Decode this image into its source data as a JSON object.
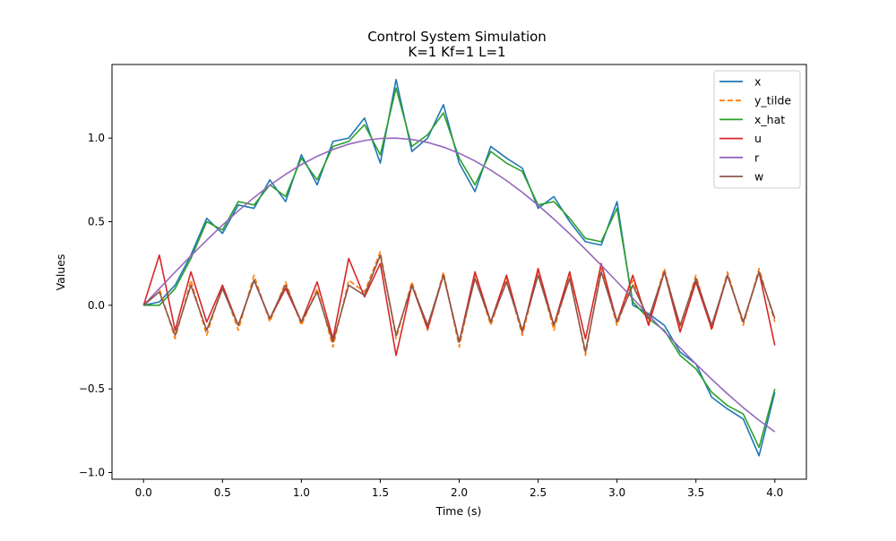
{
  "chart_data": {
    "type": "line",
    "title": "Control System Simulation",
    "subtitle": "K=1 Kf=1 L=1",
    "xlabel": "Time (s)",
    "ylabel": "Values",
    "xlim": [
      -0.2,
      4.2
    ],
    "ylim": [
      -1.04,
      1.44
    ],
    "xticks": [
      0.0,
      0.5,
      1.0,
      1.5,
      2.0,
      2.5,
      3.0,
      3.5,
      4.0
    ],
    "xtick_labels": [
      "0.0",
      "0.5",
      "1.0",
      "1.5",
      "2.0",
      "2.5",
      "3.0",
      "3.5",
      "4.0"
    ],
    "yticks": [
      -1.0,
      -0.5,
      0.0,
      0.5,
      1.0
    ],
    "ytick_labels": [
      "−1.0",
      "−0.5",
      "0.0",
      "0.5",
      "1.0"
    ],
    "grid": false,
    "legend_position": "top-right",
    "x": [
      0.0,
      0.1,
      0.2,
      0.3,
      0.4,
      0.5,
      0.6,
      0.7,
      0.8,
      0.9,
      1.0,
      1.1,
      1.2,
      1.3,
      1.4,
      1.5,
      1.6,
      1.7,
      1.8,
      1.9,
      2.0,
      2.1,
      2.2,
      2.3,
      2.4,
      2.5,
      2.6,
      2.7,
      2.8,
      2.9,
      3.0,
      3.1,
      3.2,
      3.3,
      3.4,
      3.5,
      3.6,
      3.7,
      3.8,
      3.9,
      4.0
    ],
    "series": [
      {
        "name": "x",
        "color": "#1f77b4",
        "dash": "solid",
        "values": [
          0.0,
          0.02,
          0.12,
          0.3,
          0.52,
          0.43,
          0.6,
          0.58,
          0.75,
          0.62,
          0.9,
          0.72,
          0.98,
          1.0,
          1.12,
          0.85,
          1.35,
          0.92,
          1.0,
          1.2,
          0.85,
          0.68,
          0.95,
          0.88,
          0.82,
          0.58,
          0.65,
          0.5,
          0.38,
          0.36,
          0.62,
          0.0,
          -0.05,
          -0.12,
          -0.28,
          -0.35,
          -0.55,
          -0.62,
          -0.68,
          -0.9,
          -0.52
        ]
      },
      {
        "name": "y_tilde",
        "color": "#ff7f0e",
        "dash": "dashed",
        "values": [
          0.0,
          0.1,
          -0.2,
          0.15,
          -0.18,
          0.12,
          -0.15,
          0.18,
          -0.1,
          0.14,
          -0.12,
          0.1,
          -0.25,
          0.15,
          0.08,
          0.32,
          -0.2,
          0.14,
          -0.15,
          0.2,
          -0.25,
          0.18,
          -0.12,
          0.16,
          -0.18,
          0.2,
          -0.15,
          0.18,
          -0.3,
          0.22,
          -0.12,
          0.15,
          -0.1,
          0.22,
          -0.14,
          0.18,
          -0.15,
          0.2,
          -0.12,
          0.22,
          -0.1
        ]
      },
      {
        "name": "x_hat",
        "color": "#2ca02c",
        "dash": "solid",
        "values": [
          0.0,
          0.0,
          0.1,
          0.28,
          0.5,
          0.45,
          0.62,
          0.6,
          0.72,
          0.65,
          0.88,
          0.75,
          0.95,
          0.98,
          1.08,
          0.9,
          1.3,
          0.95,
          1.02,
          1.15,
          0.88,
          0.72,
          0.92,
          0.85,
          0.8,
          0.6,
          0.62,
          0.52,
          0.4,
          0.38,
          0.58,
          0.02,
          -0.08,
          -0.15,
          -0.3,
          -0.38,
          -0.52,
          -0.6,
          -0.65,
          -0.85,
          -0.5
        ]
      },
      {
        "name": "u",
        "color": "#d62728",
        "dash": "solid",
        "values": [
          0.0,
          0.3,
          -0.15,
          0.2,
          -0.1,
          0.12,
          -0.12,
          0.15,
          -0.08,
          0.1,
          -0.1,
          0.14,
          -0.2,
          0.28,
          0.05,
          0.25,
          -0.3,
          0.12,
          -0.14,
          0.18,
          -0.22,
          0.2,
          -0.1,
          0.18,
          -0.16,
          0.22,
          -0.12,
          0.2,
          -0.2,
          0.25,
          -0.1,
          0.18,
          -0.12,
          0.2,
          -0.16,
          0.14,
          -0.14,
          0.18,
          -0.1,
          0.2,
          -0.24
        ]
      },
      {
        "name": "r",
        "color": "#9467bd",
        "dash": "solid",
        "values": [
          0.0,
          0.0998,
          0.1987,
          0.2955,
          0.3894,
          0.4794,
          0.5646,
          0.6442,
          0.7174,
          0.7833,
          0.8415,
          0.8912,
          0.932,
          0.9636,
          0.9854,
          0.9975,
          0.9996,
          0.9917,
          0.9738,
          0.9463,
          0.9093,
          0.8632,
          0.8085,
          0.7457,
          0.6755,
          0.5985,
          0.5155,
          0.4274,
          0.335,
          0.2392,
          0.1411,
          0.0416,
          -0.0584,
          -0.1577,
          -0.2555,
          -0.3508,
          -0.4425,
          -0.5298,
          -0.6119,
          -0.6878,
          -0.7568
        ]
      },
      {
        "name": "w",
        "color": "#8c564b",
        "dash": "solid",
        "values": [
          0.0,
          0.08,
          -0.18,
          0.12,
          -0.15,
          0.1,
          -0.12,
          0.15,
          -0.08,
          0.12,
          -0.1,
          0.08,
          -0.22,
          0.12,
          0.06,
          0.3,
          -0.18,
          0.12,
          -0.12,
          0.18,
          -0.22,
          0.16,
          -0.1,
          0.14,
          -0.15,
          0.18,
          -0.12,
          0.16,
          -0.28,
          0.2,
          -0.1,
          0.12,
          -0.08,
          0.2,
          -0.12,
          0.16,
          -0.12,
          0.18,
          -0.1,
          0.2,
          -0.08
        ]
      }
    ]
  }
}
